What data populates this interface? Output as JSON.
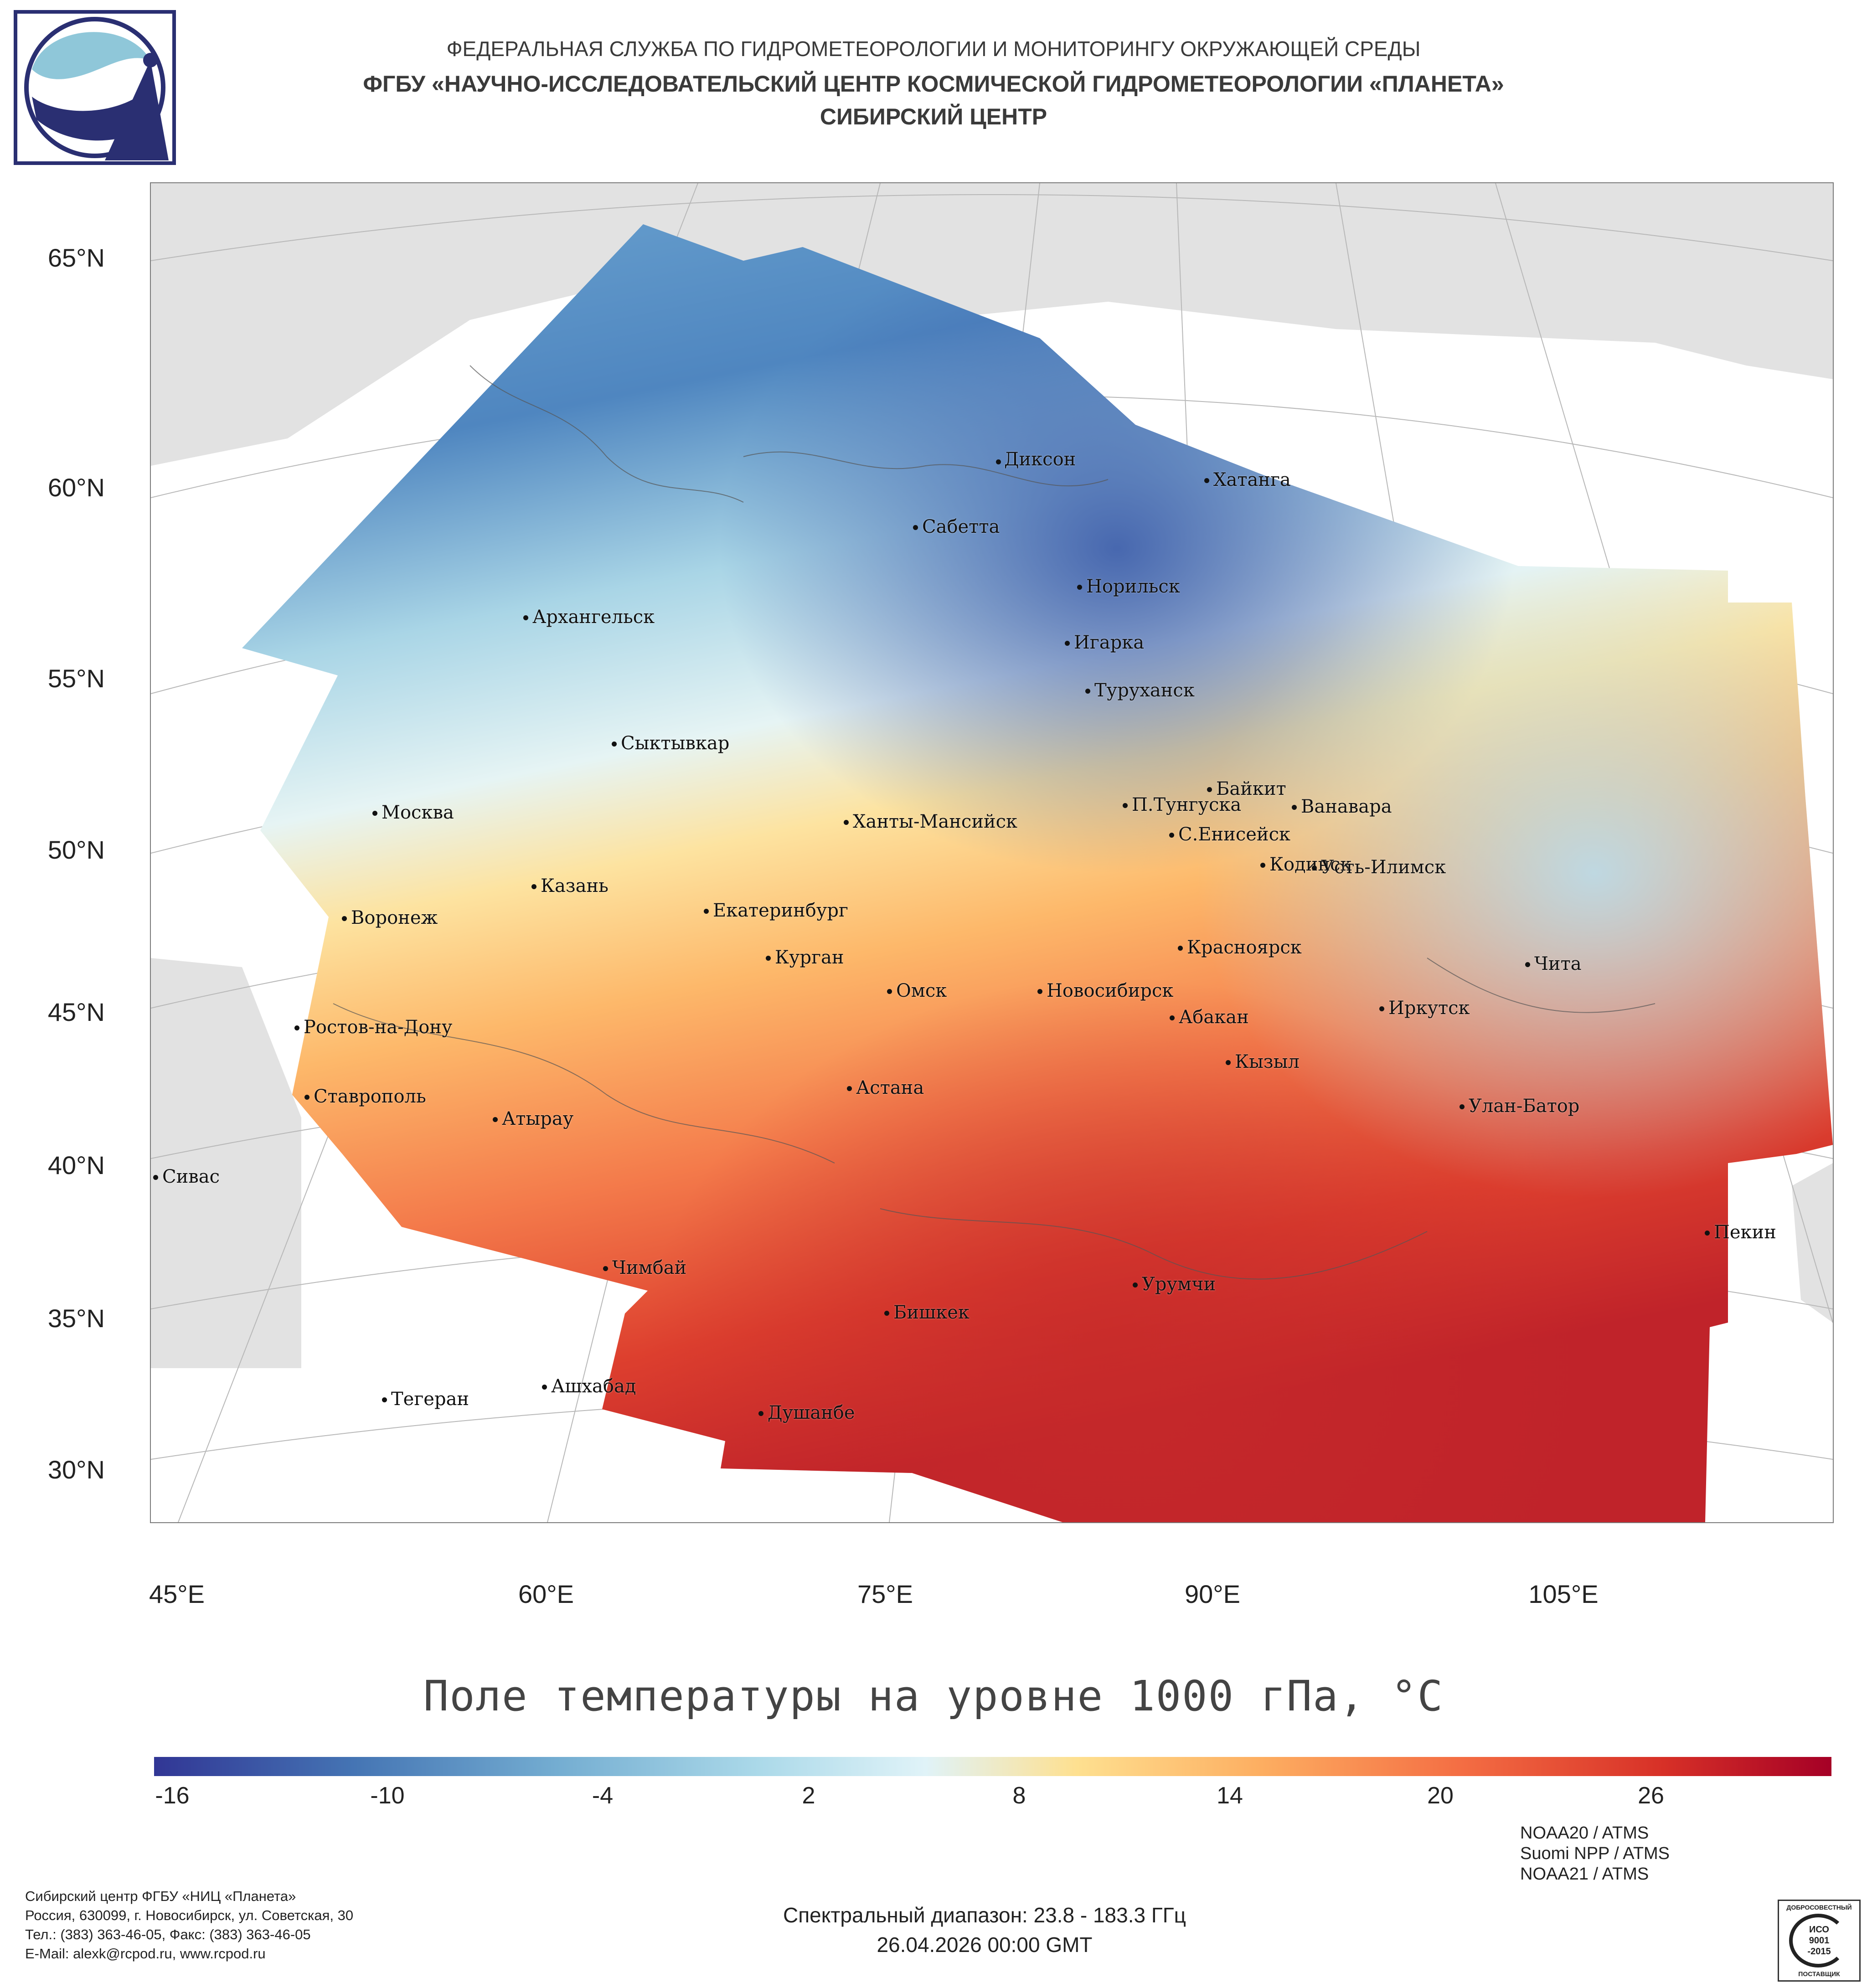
{
  "header": {
    "line1": "ФЕДЕРАЛЬНАЯ СЛУЖБА ПО ГИДРОМЕТЕОРОЛОГИИ И МОНИТОРИНГУ ОКРУЖАЮЩЕЙ СРЕДЫ",
    "line2": "ФГБУ «НАУЧНО-ИССЛЕДОВАТЕЛЬСКИЙ ЦЕНТР КОСМИЧЕСКОЙ ГИДРОМЕТЕОРОЛОГИИ «ПЛАНЕТА»",
    "line3": "СИБИРСКИЙ ЦЕНТР"
  },
  "map": {
    "lat_labels": [
      "65°N",
      "60°N",
      "55°N",
      "50°N",
      "45°N",
      "40°N",
      "35°N",
      "30°N"
    ],
    "lon_labels": [
      "45°E",
      "60°E",
      "75°E",
      "90°E",
      "105°E"
    ],
    "cities": [
      "Диксон",
      "Хатанга",
      "Сабетта",
      "Норильск",
      "Архангельск",
      "Игарка",
      "Туруханск",
      "Сыктывкар",
      "Байкит",
      "П.Тунгуска",
      "Ванавара",
      "Москва",
      "Ханты-Мансийск",
      "С.Енисейск",
      "Кодинск",
      "Усть-Илимск",
      "Казань",
      "Воронеж",
      "Екатеринбург",
      "Красноярск",
      "Курган",
      "Чита",
      "Омск",
      "Новосибирск",
      "Ростов-на-Дону",
      "Абакан",
      "Иркутск",
      "Кызыл",
      "Ставрополь",
      "Астана",
      "Улан-Батор",
      "Атырау",
      "Сивас",
      "Пекин",
      "Чимбай",
      "Урумчи",
      "Бишкек",
      "Ашхабад",
      "Тегеран",
      "Душанбе"
    ]
  },
  "legend": {
    "title": "Поле температуры на уровне 1000 гПа, °C",
    "ticks": [
      "-16",
      "-10",
      "-4",
      "2",
      "8",
      "14",
      "20",
      "26"
    ],
    "colors": [
      "#313695",
      "#4575b4",
      "#74add1",
      "#abd9e9",
      "#e0f3f8",
      "#fee090",
      "#fdae61",
      "#f46d43",
      "#d73027",
      "#a50026"
    ]
  },
  "footer": {
    "org_lines": [
      "Сибирский центр ФГБУ «НИЦ «Планета»",
      "Россия, 630099, г. Новосибирск, ул. Советская, 30",
      "Тел.: (383) 363-46-05, Факс: (383) 363-46-05",
      "E-Mail: alexk@rcpod.ru, www.rcpod.ru"
    ],
    "spectral": "Спектральный диапазон: 23.8 - 183.3 ГГц",
    "datetime": "26.04.2026 00:00 GMT",
    "sources": [
      "NOAA20 / ATMS",
      "Suomi NPP / ATMS",
      "NOAA21 / ATMS"
    ],
    "iso_top": "ДОБРОСОВЕСТНЫЙ",
    "iso_mid1": "ИСО",
    "iso_mid2": "9001",
    "iso_mid3": "-2015",
    "iso_bottom": "ПОСТАВЩИК"
  }
}
